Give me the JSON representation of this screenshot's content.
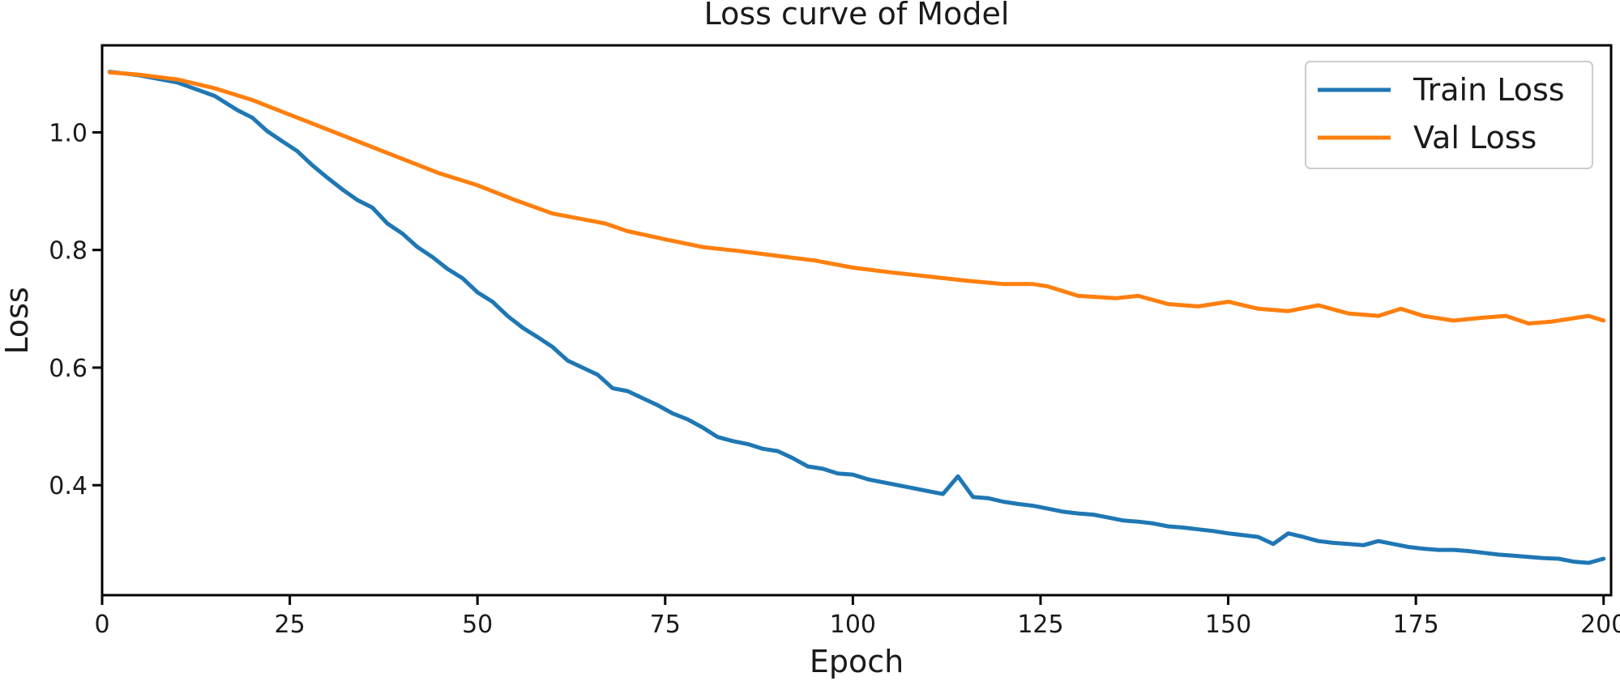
{
  "chart_data": {
    "type": "line",
    "title": "Loss curve of Model",
    "xlabel": "Epoch",
    "ylabel": "Loss",
    "xlim": [
      0,
      201
    ],
    "ylim": [
      0.213,
      1.148
    ],
    "xticks": [
      0,
      25,
      50,
      75,
      100,
      125,
      150,
      175,
      200
    ],
    "xtick_labels": [
      "0",
      "25",
      "50",
      "75",
      "100",
      "125",
      "150",
      "175",
      "200"
    ],
    "yticks": [
      0.4,
      0.6,
      0.8,
      1.0
    ],
    "ytick_labels": [
      "0.4",
      "0.6",
      "0.8",
      "1.0"
    ],
    "grid": false,
    "legend_position": "top-right",
    "series": [
      {
        "name": "Train Loss",
        "color": "#1f77b4",
        "x": [
          1,
          5,
          10,
          15,
          18,
          20,
          22,
          24,
          26,
          28,
          30,
          32,
          34,
          36,
          38,
          40,
          42,
          44,
          46,
          48,
          50,
          52,
          54,
          56,
          58,
          60,
          62,
          64,
          66,
          68,
          70,
          72,
          74,
          76,
          78,
          80,
          82,
          84,
          86,
          88,
          90,
          92,
          94,
          96,
          98,
          100,
          102,
          104,
          106,
          108,
          110,
          112,
          114,
          116,
          118,
          120,
          122,
          124,
          126,
          128,
          130,
          132,
          134,
          136,
          138,
          140,
          142,
          144,
          146,
          148,
          150,
          152,
          154,
          156,
          158,
          160,
          162,
          164,
          166,
          168,
          170,
          172,
          174,
          176,
          178,
          180,
          182,
          184,
          186,
          188,
          190,
          192,
          194,
          196,
          198,
          200
        ],
        "y": [
          1.103,
          1.097,
          1.085,
          1.062,
          1.038,
          1.025,
          1.002,
          0.985,
          0.968,
          0.944,
          0.923,
          0.903,
          0.885,
          0.872,
          0.845,
          0.828,
          0.805,
          0.788,
          0.768,
          0.752,
          0.728,
          0.712,
          0.688,
          0.668,
          0.652,
          0.635,
          0.612,
          0.6,
          0.588,
          0.565,
          0.56,
          0.548,
          0.536,
          0.522,
          0.512,
          0.498,
          0.482,
          0.475,
          0.47,
          0.462,
          0.458,
          0.446,
          0.432,
          0.428,
          0.42,
          0.418,
          0.41,
          0.405,
          0.4,
          0.395,
          0.39,
          0.385,
          0.415,
          0.38,
          0.378,
          0.372,
          0.368,
          0.365,
          0.36,
          0.355,
          0.352,
          0.35,
          0.345,
          0.34,
          0.338,
          0.335,
          0.33,
          0.328,
          0.325,
          0.322,
          0.318,
          0.315,
          0.312,
          0.3,
          0.318,
          0.312,
          0.305,
          0.302,
          0.3,
          0.298,
          0.305,
          0.3,
          0.295,
          0.292,
          0.29,
          0.29,
          0.288,
          0.285,
          0.282,
          0.28,
          0.278,
          0.276,
          0.275,
          0.27,
          0.268,
          0.275
        ]
      },
      {
        "name": "Val Loss",
        "color": "#ff7f0e",
        "x": [
          1,
          5,
          10,
          15,
          20,
          25,
          30,
          35,
          40,
          45,
          50,
          55,
          60,
          65,
          67,
          70,
          75,
          80,
          85,
          90,
          95,
          100,
          105,
          110,
          115,
          120,
          124,
          126,
          130,
          135,
          138,
          142,
          146,
          150,
          154,
          158,
          162,
          166,
          170,
          173,
          176,
          180,
          184,
          187,
          190,
          193,
          196,
          198,
          200
        ],
        "y": [
          1.102,
          1.098,
          1.09,
          1.075,
          1.055,
          1.03,
          1.005,
          0.98,
          0.955,
          0.93,
          0.91,
          0.885,
          0.862,
          0.85,
          0.845,
          0.832,
          0.818,
          0.805,
          0.798,
          0.79,
          0.782,
          0.77,
          0.762,
          0.755,
          0.748,
          0.742,
          0.742,
          0.738,
          0.722,
          0.718,
          0.722,
          0.708,
          0.704,
          0.712,
          0.7,
          0.696,
          0.706,
          0.692,
          0.688,
          0.7,
          0.688,
          0.68,
          0.685,
          0.688,
          0.675,
          0.678,
          0.684,
          0.688,
          0.68
        ]
      }
    ]
  }
}
